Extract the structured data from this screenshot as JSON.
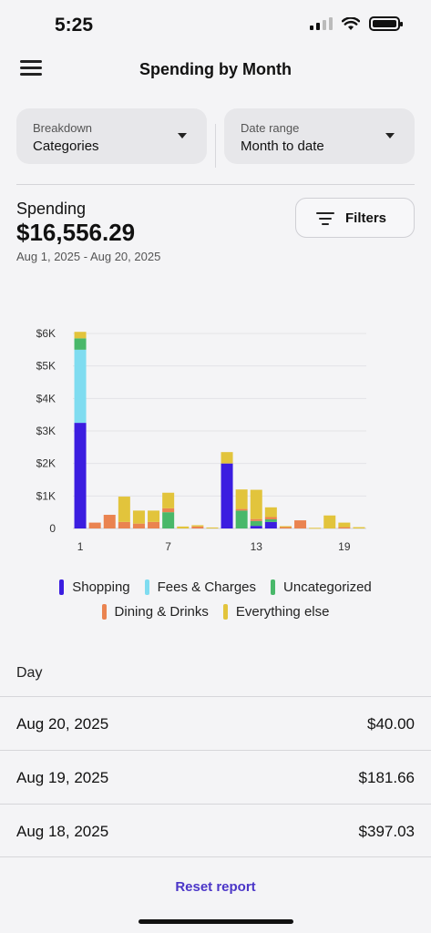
{
  "status": {
    "time": "5:25"
  },
  "header": {
    "title": "Spending by Month"
  },
  "breakdown": {
    "label": "Breakdown",
    "value": "Categories"
  },
  "date_range": {
    "label": "Date range",
    "value": "Month to date"
  },
  "summary": {
    "label": "Spending",
    "total": "$16,556.29",
    "range": "Aug 1, 2025 - Aug 20, 2025"
  },
  "filters": {
    "label": "Filters"
  },
  "colors": {
    "shopping": "#3b1de0",
    "fees": "#7fdcf0",
    "uncategorized": "#49b86a",
    "dining": "#ea8350",
    "everything_else": "#e2c43c",
    "accent": "#4b36c8"
  },
  "chart_data": {
    "type": "bar",
    "stacked": true,
    "categories": [
      "1",
      "2",
      "3",
      "4",
      "5",
      "6",
      "7",
      "8",
      "9",
      "10",
      "11",
      "12",
      "13",
      "14",
      "15",
      "16",
      "17",
      "18",
      "19",
      "20"
    ],
    "x_tick_labels": [
      "1",
      "7",
      "13",
      "19"
    ],
    "y_tick_labels": [
      "0",
      "$1K",
      "$2K",
      "$3K",
      "$4K",
      "$5K",
      "$6K"
    ],
    "ylim": [
      0,
      6000
    ],
    "grid": true,
    "series": [
      {
        "name": "Shopping",
        "color": "#3b1de0",
        "values": [
          3250,
          0,
          0,
          0,
          0,
          0,
          0,
          0,
          0,
          0,
          2000,
          0,
          80,
          200,
          0,
          0,
          0,
          0,
          0,
          0
        ]
      },
      {
        "name": "Fees & Charges",
        "color": "#7fdcf0",
        "values": [
          2250,
          0,
          0,
          0,
          0,
          0,
          0,
          0,
          0,
          0,
          0,
          0,
          0,
          0,
          0,
          0,
          0,
          0,
          0,
          0
        ]
      },
      {
        "name": "Uncategorized",
        "color": "#49b86a",
        "values": [
          350,
          0,
          0,
          0,
          0,
          0,
          500,
          0,
          0,
          0,
          0,
          550,
          150,
          80,
          0,
          0,
          0,
          0,
          0,
          0
        ]
      },
      {
        "name": "Dining & Drinks",
        "color": "#ea8350",
        "values": [
          0,
          180,
          420,
          200,
          150,
          200,
          120,
          0,
          60,
          0,
          0,
          50,
          60,
          70,
          50,
          250,
          0,
          0,
          40,
          0
        ]
      },
      {
        "name": "Everything else",
        "color": "#e2c43c",
        "values": [
          200,
          0,
          0,
          780,
          400,
          350,
          480,
          60,
          40,
          30,
          350,
          600,
          900,
          300,
          20,
          0,
          20,
          400,
          140,
          40
        ]
      }
    ]
  },
  "legend": {
    "rows": [
      [
        "Shopping",
        "Fees & Charges",
        "Uncategorized"
      ],
      [
        "Dining & Drinks",
        "Everything else"
      ]
    ]
  },
  "list": {
    "header": "Day",
    "rows": [
      {
        "date": "Aug 20, 2025",
        "amount": "$40.00"
      },
      {
        "date": "Aug 19, 2025",
        "amount": "$181.66"
      },
      {
        "date": "Aug 18, 2025",
        "amount": "$397.03"
      }
    ]
  },
  "footer": {
    "reset_label": "Reset report"
  }
}
